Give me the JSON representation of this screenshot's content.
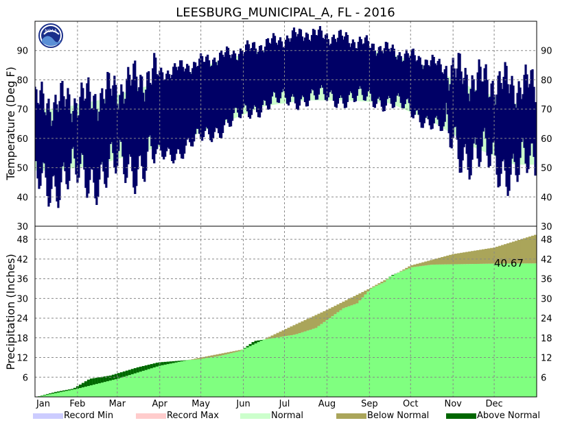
{
  "chart_data": {
    "type": "area",
    "title": "LEESBURG_MUNICIPAL_A, FL - 2016",
    "months": [
      "Jan",
      "Feb",
      "Mar",
      "Apr",
      "May",
      "Jun",
      "Jul",
      "Aug",
      "Sep",
      "Oct",
      "Nov",
      "Dec"
    ],
    "temperature_panel": {
      "ylabel": "Temperature (Deg F)",
      "ylim": [
        30,
        100
      ],
      "yticks": [
        30,
        40,
        50,
        60,
        70,
        80,
        90
      ],
      "normal_low_monthly": [
        49,
        51,
        55,
        59,
        65,
        71,
        73,
        73,
        72,
        66,
        57,
        51
      ],
      "normal_high_monthly": [
        70,
        73,
        77,
        81,
        87,
        90,
        91,
        91,
        89,
        84,
        77,
        72
      ],
      "observed_low_monthly": [
        46,
        48,
        52,
        56,
        64,
        72,
        74,
        74,
        73,
        66,
        54,
        50
      ],
      "observed_high_monthly": [
        72,
        74,
        80,
        84,
        88,
        92,
        96,
        94,
        90,
        86,
        80,
        78
      ]
    },
    "precipitation_panel": {
      "ylabel": "Precipitation (Inches)",
      "ylim": [
        0,
        52
      ],
      "yticks": [
        6,
        12,
        18,
        24,
        30,
        36,
        42,
        48
      ],
      "observed_cumulative": {
        "day_of_year": [
          1,
          15,
          28,
          40,
          55,
          75,
          90,
          105,
          120,
          135,
          150,
          160,
          175,
          190,
          205,
          215,
          225,
          235,
          245,
          255,
          260,
          275,
          290,
          305,
          320,
          335,
          350,
          366
        ],
        "value": [
          0,
          1.5,
          2.5,
          5.5,
          6.5,
          9,
          10.5,
          11,
          11.5,
          12.5,
          14,
          17,
          18,
          19,
          21,
          24,
          27,
          28.5,
          33,
          35,
          37,
          39.5,
          40.3,
          40.4,
          40.5,
          40.6,
          40.65,
          40.67
        ]
      },
      "normal_cumulative_monthly_end": [
        2.5,
        5.5,
        9.5,
        12,
        14.5,
        20.5,
        26.5,
        33,
        40,
        43.5,
        45.5,
        49.5
      ],
      "annotation": "40.67"
    },
    "legend": [
      "Record Min",
      "Record Max",
      "Normal",
      "Below Normal",
      "Above Normal"
    ],
    "colors": {
      "record_min": "#ccccff",
      "record_max": "#ffcccc",
      "normal": "#ccffcc",
      "below_normal": "#aaa55a",
      "above_normal": "#006600",
      "observed_temp": "#000066",
      "precip_fill": "#80ff80"
    }
  },
  "noaa_logo": "NOAA"
}
